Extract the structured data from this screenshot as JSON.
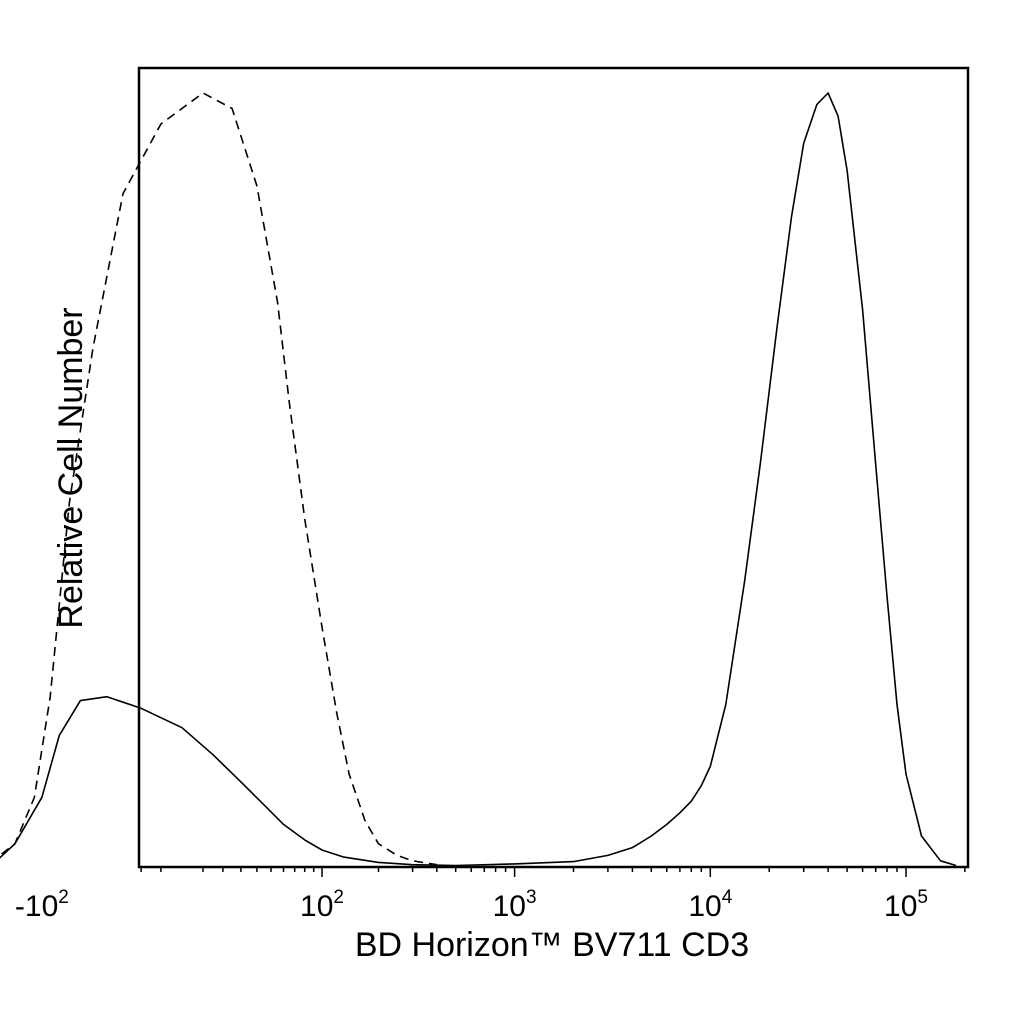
{
  "chart_data": {
    "type": "area",
    "title": "",
    "xlabel": "BD Horizon™ BV711 CD3",
    "ylabel": "Relative Cell Number",
    "x_scale": "biexponential",
    "xlim": [
      -200,
      250000
    ],
    "ylim": [
      0,
      100
    ],
    "grid": false,
    "legend": "none",
    "x_ticks": [
      {
        "value": -100,
        "base": "-10",
        "exp": "2"
      },
      {
        "value": 100,
        "base": "10",
        "exp": "2"
      },
      {
        "value": 1000,
        "base": "10",
        "exp": "3"
      },
      {
        "value": 10000,
        "base": "10",
        "exp": "4"
      },
      {
        "value": 100000,
        "base": "10",
        "exp": "5"
      }
    ],
    "series": [
      {
        "style": "dashed",
        "x": [
          -190,
          -140,
          -110,
          -90,
          -70,
          -50,
          -30,
          -10,
          10,
          25,
          40,
          55,
          65,
          80,
          100,
          120,
          140,
          170,
          200,
          250,
          300,
          400
        ],
        "y": [
          0.5,
          3,
          9,
          22,
          47,
          67,
          87,
          96,
          100,
          98,
          88,
          73,
          60,
          45,
          31,
          20,
          12,
          6,
          3,
          1.5,
          0.8,
          0.3
        ]
      },
      {
        "style": "solid",
        "x": [
          -180,
          -140,
          -100,
          -80,
          -60,
          -40,
          -20,
          0,
          15,
          30,
          45,
          60,
          80,
          100,
          130,
          200,
          300,
          500,
          1000,
          2000,
          3000,
          4000,
          5000,
          6000,
          7000,
          8000,
          9000,
          10000,
          12000,
          15000,
          18000,
          22000,
          26000,
          30000,
          35000,
          40000,
          45000,
          50000,
          60000,
          70000,
          80000,
          90000,
          100000,
          120000,
          150000,
          180000
        ],
        "y": [
          0.5,
          3,
          9,
          17,
          21.5,
          22,
          20.5,
          18,
          14.5,
          11,
          8,
          5.5,
          3.5,
          2.2,
          1.3,
          0.6,
          0.3,
          0.2,
          0.4,
          0.7,
          1.5,
          2.5,
          4,
          5.5,
          7,
          8.5,
          10.5,
          13,
          21,
          37,
          52,
          70,
          84,
          93.5,
          98.5,
          100,
          97,
          90,
          72,
          52,
          35,
          21,
          12,
          4,
          0.8,
          0.2
        ]
      }
    ]
  }
}
